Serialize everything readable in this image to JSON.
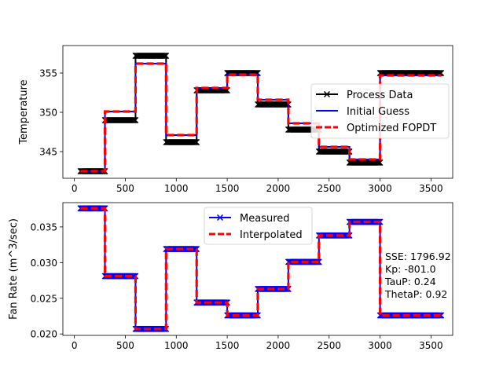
{
  "chart_data": [
    {
      "type": "line",
      "ylabel": "Temperature",
      "xlim": [
        -113,
        3713
      ],
      "ylim": [
        341.6,
        358.5
      ],
      "xticks": [
        0,
        500,
        1000,
        1500,
        2000,
        2500,
        3000,
        3500
      ],
      "xtick_labels": [
        "0",
        "500",
        "1000",
        "1500",
        "2000",
        "2500",
        "3000",
        "3500"
      ],
      "yticks": [
        345,
        350,
        355
      ],
      "ytick_labels": [
        "345",
        "350",
        "355"
      ],
      "legend_position": "center-right",
      "series": [
        {
          "name": "Process Data",
          "color": "#000000",
          "style": "solid-x-markers",
          "steps": [
            {
              "x0": 60,
              "x1": 300,
              "y": 342.5
            },
            {
              "x0": 300,
              "x1": 600,
              "y": 349.0
            },
            {
              "x0": 600,
              "x1": 900,
              "y": 357.2
            },
            {
              "x0": 900,
              "x1": 1200,
              "y": 346.2
            },
            {
              "x0": 1200,
              "x1": 1500,
              "y": 352.8
            },
            {
              "x0": 1500,
              "x1": 1800,
              "y": 355.0
            },
            {
              "x0": 1800,
              "x1": 2100,
              "y": 351.0
            },
            {
              "x0": 2100,
              "x1": 2400,
              "y": 347.8
            },
            {
              "x0": 2400,
              "x1": 2700,
              "y": 345.0
            },
            {
              "x0": 2700,
              "x1": 3000,
              "y": 343.6
            },
            {
              "x0": 3000,
              "x1": 3600,
              "y": 355.0
            }
          ]
        },
        {
          "name": "Initial Guess",
          "color": "#0000ff",
          "style": "solid",
          "steps": [
            {
              "x0": 60,
              "x1": 300,
              "y": 342.5
            },
            {
              "x0": 300,
              "x1": 600,
              "y": 350.1
            },
            {
              "x0": 600,
              "x1": 900,
              "y": 356.2
            },
            {
              "x0": 900,
              "x1": 1200,
              "y": 347.1
            },
            {
              "x0": 1200,
              "x1": 1500,
              "y": 353.1
            },
            {
              "x0": 1500,
              "x1": 1800,
              "y": 354.8
            },
            {
              "x0": 1800,
              "x1": 2100,
              "y": 351.6
            },
            {
              "x0": 2100,
              "x1": 2400,
              "y": 348.6
            },
            {
              "x0": 2400,
              "x1": 2700,
              "y": 345.6
            },
            {
              "x0": 2700,
              "x1": 3000,
              "y": 344.0
            },
            {
              "x0": 3000,
              "x1": 3600,
              "y": 354.7
            }
          ]
        },
        {
          "name": "Optimized FOPDT",
          "color": "#ff0000",
          "style": "dashed",
          "steps": [
            {
              "x0": 60,
              "x1": 300,
              "y": 342.5
            },
            {
              "x0": 300,
              "x1": 600,
              "y": 350.1
            },
            {
              "x0": 600,
              "x1": 900,
              "y": 356.2
            },
            {
              "x0": 900,
              "x1": 1200,
              "y": 347.1
            },
            {
              "x0": 1200,
              "x1": 1500,
              "y": 353.1
            },
            {
              "x0": 1500,
              "x1": 1800,
              "y": 354.8
            },
            {
              "x0": 1800,
              "x1": 2100,
              "y": 351.6
            },
            {
              "x0": 2100,
              "x1": 2400,
              "y": 348.6
            },
            {
              "x0": 2400,
              "x1": 2700,
              "y": 345.6
            },
            {
              "x0": 2700,
              "x1": 3000,
              "y": 344.0
            },
            {
              "x0": 3000,
              "x1": 3600,
              "y": 354.7
            }
          ]
        }
      ]
    },
    {
      "type": "line",
      "ylabel": "Fan Rate (m^3/sec)",
      "xlim": [
        -113,
        3713
      ],
      "ylim": [
        0.0198,
        0.0384
      ],
      "xticks": [
        0,
        500,
        1000,
        1500,
        2000,
        2500,
        3000,
        3500
      ],
      "xtick_labels": [
        "0",
        "500",
        "1000",
        "1500",
        "2000",
        "2500",
        "3000",
        "3500"
      ],
      "yticks": [
        0.02,
        0.025,
        0.03,
        0.035
      ],
      "ytick_labels": [
        "0.020",
        "0.025",
        "0.030",
        "0.035"
      ],
      "legend_position": "upper-center",
      "series": [
        {
          "name": "Measured",
          "color": "#0000ff",
          "style": "solid-x-markers",
          "steps": [
            {
              "x0": 60,
              "x1": 300,
              "y": 0.0376
            },
            {
              "x0": 300,
              "x1": 600,
              "y": 0.0281
            },
            {
              "x0": 600,
              "x1": 900,
              "y": 0.0207
            },
            {
              "x0": 900,
              "x1": 1200,
              "y": 0.0319
            },
            {
              "x0": 1200,
              "x1": 1500,
              "y": 0.0244
            },
            {
              "x0": 1500,
              "x1": 1800,
              "y": 0.0226
            },
            {
              "x0": 1800,
              "x1": 2100,
              "y": 0.0263
            },
            {
              "x0": 2100,
              "x1": 2400,
              "y": 0.0301
            },
            {
              "x0": 2400,
              "x1": 2700,
              "y": 0.0338
            },
            {
              "x0": 2700,
              "x1": 3000,
              "y": 0.0357
            },
            {
              "x0": 3000,
              "x1": 3600,
              "y": 0.0226
            }
          ]
        },
        {
          "name": "Interpolated",
          "color": "#ff0000",
          "style": "dashed",
          "steps": [
            {
              "x0": 60,
              "x1": 300,
              "y": 0.0376
            },
            {
              "x0": 300,
              "x1": 600,
              "y": 0.0281
            },
            {
              "x0": 600,
              "x1": 900,
              "y": 0.0207
            },
            {
              "x0": 900,
              "x1": 1200,
              "y": 0.0319
            },
            {
              "x0": 1200,
              "x1": 1500,
              "y": 0.0244
            },
            {
              "x0": 1500,
              "x1": 1800,
              "y": 0.0226
            },
            {
              "x0": 1800,
              "x1": 2100,
              "y": 0.0263
            },
            {
              "x0": 2100,
              "x1": 2400,
              "y": 0.0301
            },
            {
              "x0": 2400,
              "x1": 2700,
              "y": 0.0338
            },
            {
              "x0": 2700,
              "x1": 3000,
              "y": 0.0357
            },
            {
              "x0": 3000,
              "x1": 3600,
              "y": 0.0226
            }
          ]
        }
      ],
      "annotations": [
        "SSE: 1796.92",
        "Kp: -801.0",
        "TauP: 0.24",
        "ThetaP: 0.92"
      ]
    }
  ]
}
